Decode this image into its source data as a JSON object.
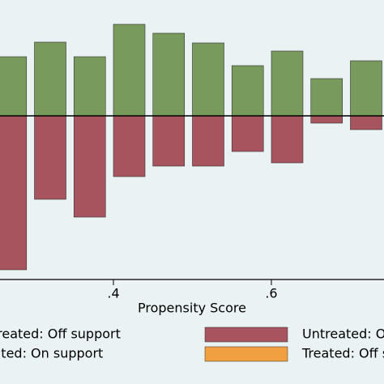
{
  "chart_data": {
    "type": "bar",
    "x_label": "Propensity Score",
    "x": [
      0.27,
      0.32,
      0.37,
      0.42,
      0.47,
      0.52,
      0.57,
      0.62,
      0.67,
      0.72
    ],
    "bar_width": 0.04,
    "series": [
      {
        "name": "Treated: On support",
        "color": "#789a5c",
        "values": [
          0.73,
          0.91,
          0.73,
          1.13,
          1.02,
          0.9,
          0.62,
          0.8,
          0.46,
          0.68
        ]
      },
      {
        "name": "Untreated: On support",
        "color": "#a8545f",
        "values": [
          -1.9,
          -1.03,
          -1.25,
          -0.75,
          -0.62,
          -0.62,
          -0.44,
          -0.58,
          -0.09,
          -0.17
        ]
      }
    ],
    "legend": [
      {
        "name": "Untreated: Off support",
        "color": "#1f3f8f"
      },
      {
        "name": "Treated: On support",
        "color": "#789a5c"
      },
      {
        "name": "Untreated: On support",
        "color": "#a8545f"
      },
      {
        "name": "Treated: Off support",
        "color": "#f0a040"
      }
    ],
    "xlim": [
      0.2564,
      0.7426
    ],
    "ylim": [
      -2.02,
      1.43
    ],
    "xticks": [
      {
        "value": 0.4,
        "label": ".4"
      },
      {
        "value": 0.6,
        "label": ".6"
      }
    ]
  }
}
